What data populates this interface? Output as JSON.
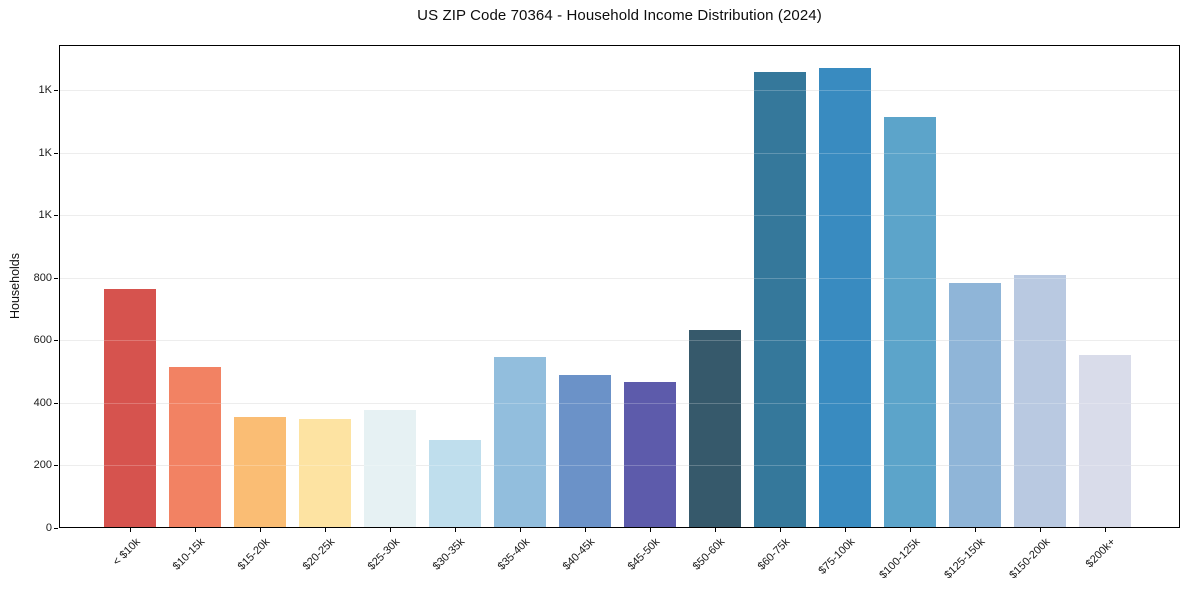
{
  "figure": {
    "title": "US ZIP Code 70364 - Household Income Distribution (2024)"
  },
  "chart_data": {
    "type": "bar",
    "title": "US ZIP Code 70364 - Household Income Distribution (2024)",
    "xlabel": "",
    "ylabel": "Households",
    "categories": [
      "< $10k",
      "$10-15k",
      "$15-20k",
      "$20-25k",
      "$25-30k",
      "$30-35k",
      "$35-40k",
      "$40-45k",
      "$45-50k",
      "$50-60k",
      "$60-75k",
      "$75-100k",
      "$100-125k",
      "$125-150k",
      "$150-200k",
      "$200k+"
    ],
    "values": [
      765,
      515,
      355,
      350,
      377,
      282,
      546,
      490,
      467,
      635,
      1460,
      1472,
      1315,
      785,
      810,
      555
    ],
    "bar_colors": [
      "#d6534e",
      "#f28263",
      "#fabd74",
      "#fde3a2",
      "#e6f1f3",
      "#bfdeed",
      "#92bedd",
      "#6b92c8",
      "#5d5bab",
      "#36596b",
      "#35789b",
      "#398bc0",
      "#5ca4ca",
      "#8fb5d8",
      "#b9c9e1",
      "#d9dcea"
    ],
    "ylim": [
      0,
      1546
    ],
    "yticks": [
      {
        "value": 0,
        "label": "0"
      },
      {
        "value": 200,
        "label": "200"
      },
      {
        "value": 400,
        "label": "400"
      },
      {
        "value": 600,
        "label": "600"
      },
      {
        "value": 800,
        "label": "800"
      },
      {
        "value": 1000,
        "label": "1K"
      },
      {
        "value": 1200,
        "label": "1K"
      },
      {
        "value": 1400,
        "label": "1K"
      }
    ],
    "grid": "horizontal",
    "legend": "none",
    "colors": {
      "grid": "#e8e8e8",
      "grid_over_bars": "rgba(255,255,255,0.22)",
      "spine": "#000000",
      "text": "#1a1a1a",
      "background": "#ffffff"
    }
  }
}
